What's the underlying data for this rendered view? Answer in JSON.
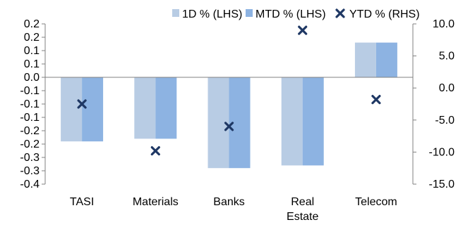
{
  "chart_data": {
    "type": "bar",
    "categories": [
      "TASI",
      "Materials",
      "Banks",
      "Real\nEstate",
      "Telecom"
    ],
    "series": [
      {
        "name": "1D % (LHS)",
        "kind": "bar",
        "axis": "left",
        "color": "#b8cce4",
        "values": [
          -0.24,
          -0.23,
          -0.34,
          -0.33,
          0.13
        ]
      },
      {
        "name": "MTD % (LHS)",
        "kind": "bar",
        "axis": "left",
        "color": "#8db3e2",
        "values": [
          -0.24,
          -0.23,
          -0.34,
          -0.33,
          0.13
        ]
      },
      {
        "name": "YTD % (RHS)",
        "kind": "marker",
        "axis": "right",
        "color": "#1f3864",
        "values": [
          -2.5,
          -9.8,
          -6.0,
          9.0,
          -1.8
        ]
      }
    ],
    "left_axis": {
      "ylim": [
        -0.4,
        0.2
      ],
      "ticks": [
        -0.4,
        -0.35,
        -0.3,
        -0.25,
        -0.2,
        -0.15,
        -0.1,
        -0.05,
        0.0,
        0.05,
        0.1,
        0.15,
        0.2
      ],
      "tick_labels": [
        "-0.4",
        "-0.3",
        "-0.3",
        "-0.2",
        "-0.2",
        "-0.1",
        "-0.1",
        "-0.1",
        "0.0",
        "0.1",
        "0.1",
        "0.2",
        "0.2"
      ]
    },
    "right_axis": {
      "ylim": [
        -15,
        10
      ],
      "ticks": [
        -15,
        -10,
        -5,
        0,
        5,
        10
      ],
      "tick_labels": [
        "-15.0",
        "-10.0",
        "-5.0",
        "0.0",
        "5.0",
        "10.0"
      ]
    },
    "legend_position": "top",
    "grid": false,
    "title": "",
    "xlabel": "",
    "ylabel": ""
  }
}
